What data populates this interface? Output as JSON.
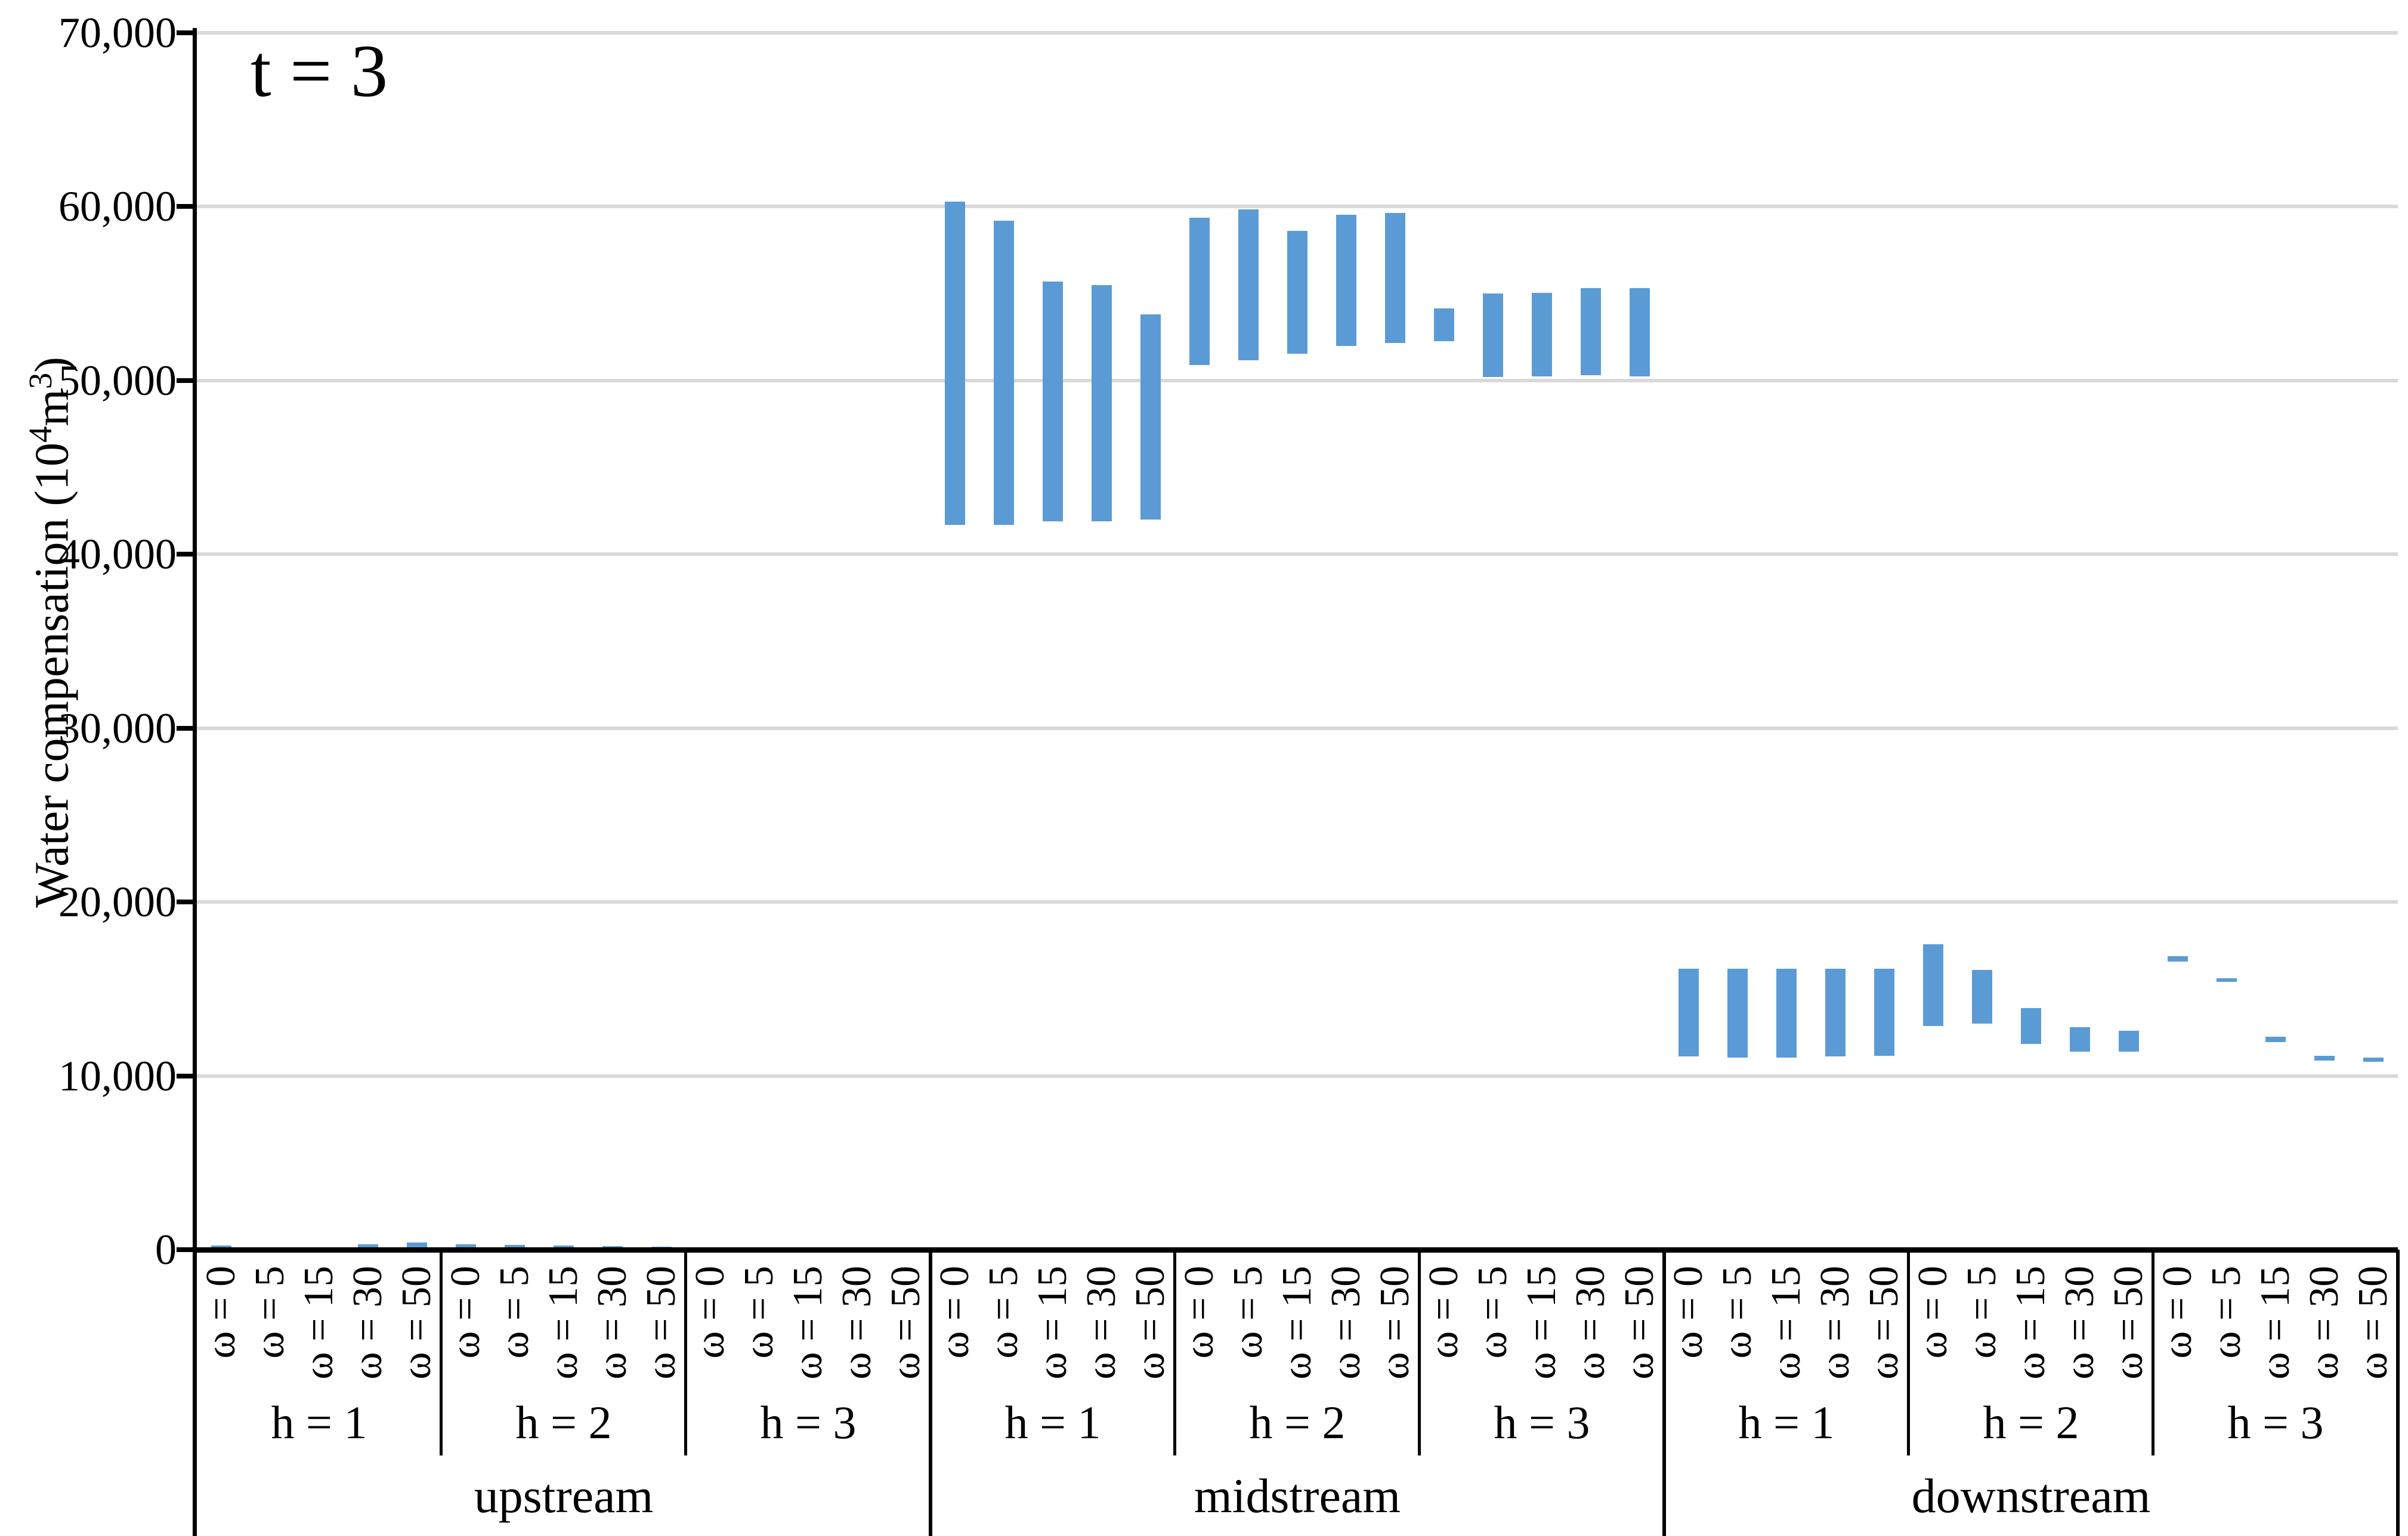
{
  "annotation": "t = 3",
  "colors": {
    "bar": "#5B9BD5",
    "gridline": "#D9D9D9",
    "axis": "#000000"
  },
  "y_axis": {
    "title": "Water compensation (10⁴m³)",
    "title_parts": {
      "pre": "Water compensation (10",
      "sup1": "4",
      "mid": "m",
      "sup2": "3",
      "suf": ")"
    },
    "tick_labels": [
      "70,000",
      "60,000",
      "50,000",
      "40,000",
      "30,000",
      "20,000",
      "10,000",
      "0"
    ],
    "min": 0,
    "max": 70000,
    "step": 10000
  },
  "chart_data": {
    "type": "bar",
    "subtype": "floating-range-columns",
    "title": "t = 3",
    "ylabel": "Water compensation (10⁴m³)",
    "ylim": [
      0,
      70000
    ],
    "grid": true,
    "legend": "none",
    "omega_labels": [
      "ω = 0",
      "ω = 5",
      "ω = 15",
      "ω = 30",
      "ω = 50"
    ],
    "regions": [
      {
        "label": "upstream",
        "h_groups": [
          {
            "label": "h = 1",
            "bars": [
              {
                "omega": "ω = 0",
                "min": 100,
                "max": 250
              },
              {
                "omega": "ω = 5",
                "min": 0,
                "max": 0
              },
              {
                "omega": "ω = 15",
                "min": 0,
                "max": 0
              },
              {
                "omega": "ω = 30",
                "min": 120,
                "max": 320
              },
              {
                "omega": "ω = 50",
                "min": 0,
                "max": 400
              }
            ]
          },
          {
            "label": "h = 2",
            "bars": [
              {
                "omega": "ω = 0",
                "min": 130,
                "max": 300
              },
              {
                "omega": "ω = 5",
                "min": 120,
                "max": 280
              },
              {
                "omega": "ω = 15",
                "min": 60,
                "max": 230
              },
              {
                "omega": "ω = 30",
                "min": 50,
                "max": 220
              },
              {
                "omega": "ω = 50",
                "min": 30,
                "max": 180
              }
            ]
          },
          {
            "label": "h = 3",
            "bars": [
              {
                "omega": "ω = 0",
                "min": 0,
                "max": 0
              },
              {
                "omega": "ω = 5",
                "min": 0,
                "max": 0
              },
              {
                "omega": "ω = 15",
                "min": 0,
                "max": 0
              },
              {
                "omega": "ω = 30",
                "min": 0,
                "max": 0
              },
              {
                "omega": "ω = 50",
                "min": 0,
                "max": 0
              }
            ]
          }
        ]
      },
      {
        "label": "midstream",
        "h_groups": [
          {
            "label": "h = 1",
            "bars": [
              {
                "omega": "ω = 0",
                "min": 41700,
                "max": 60300
              },
              {
                "omega": "ω = 5",
                "min": 41700,
                "max": 59200
              },
              {
                "omega": "ω = 15",
                "min": 41900,
                "max": 55700
              },
              {
                "omega": "ω = 30",
                "min": 41900,
                "max": 55500
              },
              {
                "omega": "ω = 50",
                "min": 42000,
                "max": 53800
              }
            ]
          },
          {
            "label": "h = 2",
            "bars": [
              {
                "omega": "ω = 0",
                "min": 50900,
                "max": 59350
              },
              {
                "omega": "ω = 5",
                "min": 51150,
                "max": 59850
              },
              {
                "omega": "ω = 15",
                "min": 51550,
                "max": 58600
              },
              {
                "omega": "ω = 30",
                "min": 52000,
                "max": 59550
              },
              {
                "omega": "ω = 50",
                "min": 52150,
                "max": 59650
              }
            ]
          },
          {
            "label": "h = 3",
            "bars": [
              {
                "omega": "ω = 0",
                "min": 52250,
                "max": 54150
              },
              {
                "omega": "ω = 5",
                "min": 50200,
                "max": 55000
              },
              {
                "omega": "ω = 15",
                "min": 50250,
                "max": 55050
              },
              {
                "omega": "ω = 30",
                "min": 50300,
                "max": 55300
              },
              {
                "omega": "ω = 50",
                "min": 50250,
                "max": 55300
              }
            ]
          }
        ]
      },
      {
        "label": "downstream",
        "h_groups": [
          {
            "label": "h = 1",
            "bars": [
              {
                "omega": "ω = 0",
                "min": 11100,
                "max": 16150
              },
              {
                "omega": "ω = 5",
                "min": 11050,
                "max": 16150
              },
              {
                "omega": "ω = 15",
                "min": 11050,
                "max": 16150
              },
              {
                "omega": "ω = 30",
                "min": 11100,
                "max": 16150
              },
              {
                "omega": "ω = 50",
                "min": 11150,
                "max": 16150
              }
            ]
          },
          {
            "label": "h = 2",
            "bars": [
              {
                "omega": "ω = 0",
                "min": 12870,
                "max": 17580
              },
              {
                "omega": "ω = 5",
                "min": 13000,
                "max": 16100
              },
              {
                "omega": "ω = 15",
                "min": 11850,
                "max": 13900
              },
              {
                "omega": "ω = 30",
                "min": 11400,
                "max": 12800
              },
              {
                "omega": "ω = 50",
                "min": 11400,
                "max": 12600
              }
            ]
          },
          {
            "label": "h = 3",
            "bars": [
              {
                "omega": "ω = 0",
                "min": 16580,
                "max": 16880
              },
              {
                "omega": "ω = 5",
                "min": 15400,
                "max": 15600
              },
              {
                "omega": "ω = 15",
                "min": 11950,
                "max": 12260
              },
              {
                "omega": "ω = 30",
                "min": 10890,
                "max": 11170
              },
              {
                "omega": "ω = 50",
                "min": 10820,
                "max": 11050
              }
            ]
          }
        ]
      }
    ]
  }
}
